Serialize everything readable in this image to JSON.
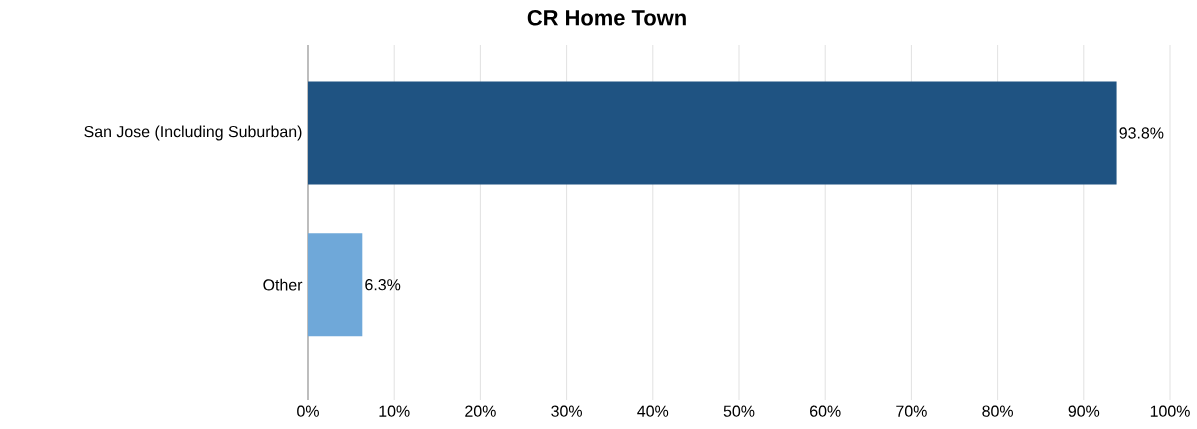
{
  "chart_data": {
    "type": "bar",
    "orientation": "horizontal",
    "title": "CR Home Town",
    "categories": [
      "San Jose (Including Suburban)",
      "Other"
    ],
    "values": [
      93.8,
      6.3
    ],
    "colors": [
      "#1f5382",
      "#6fa8d9"
    ],
    "value_labels": [
      "93.8%",
      "6.3%"
    ],
    "xlim": [
      0,
      100
    ],
    "xticks": [
      {
        "value": 0,
        "label": "0%"
      },
      {
        "value": 10,
        "label": "10%"
      },
      {
        "value": 20,
        "label": "20%"
      },
      {
        "value": 30,
        "label": "30%"
      },
      {
        "value": 40,
        "label": "40%"
      },
      {
        "value": 50,
        "label": "50%"
      },
      {
        "value": 60,
        "label": "60%"
      },
      {
        "value": 70,
        "label": "70%"
      },
      {
        "value": 80,
        "label": "80%"
      },
      {
        "value": 90,
        "label": "90%"
      },
      {
        "value": 100,
        "label": "100%"
      }
    ],
    "grid": "x"
  }
}
